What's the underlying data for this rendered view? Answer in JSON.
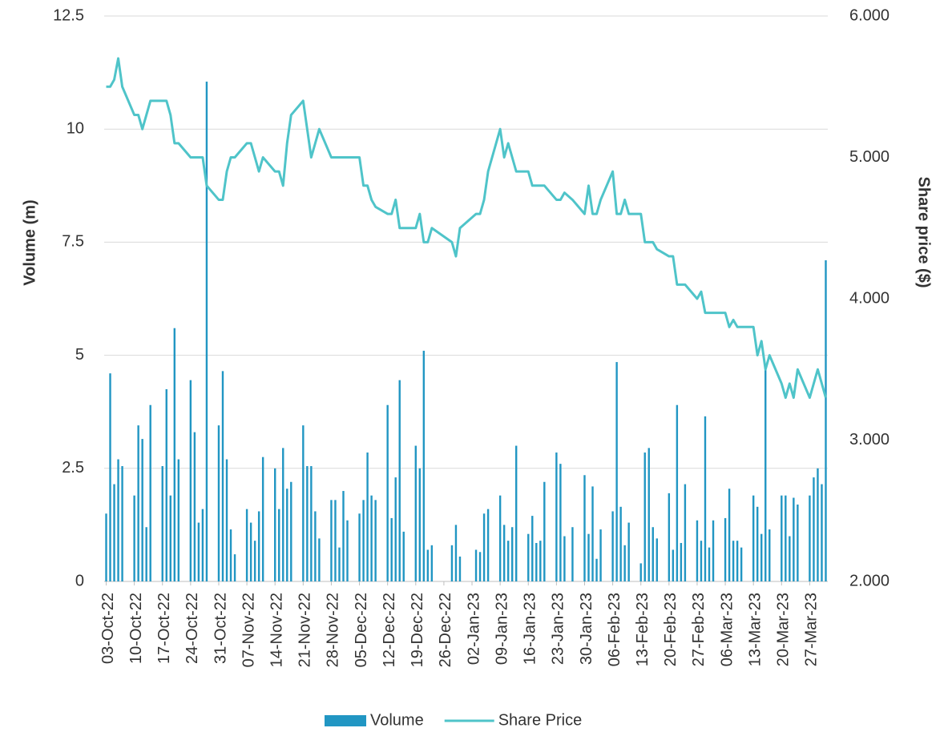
{
  "chart_data": {
    "type": "combo",
    "x": [
      "03-Oct-22",
      "04-Oct-22",
      "05-Oct-22",
      "06-Oct-22",
      "07-Oct-22",
      "10-Oct-22",
      "11-Oct-22",
      "12-Oct-22",
      "13-Oct-22",
      "14-Oct-22",
      "17-Oct-22",
      "18-Oct-22",
      "19-Oct-22",
      "20-Oct-22",
      "21-Oct-22",
      "24-Oct-22",
      "25-Oct-22",
      "26-Oct-22",
      "27-Oct-22",
      "28-Oct-22",
      "31-Oct-22",
      "01-Nov-22",
      "02-Nov-22",
      "03-Nov-22",
      "04-Nov-22",
      "07-Nov-22",
      "08-Nov-22",
      "09-Nov-22",
      "10-Nov-22",
      "11-Nov-22",
      "14-Nov-22",
      "15-Nov-22",
      "16-Nov-22",
      "17-Nov-22",
      "18-Nov-22",
      "21-Nov-22",
      "22-Nov-22",
      "23-Nov-22",
      "24-Nov-22",
      "25-Nov-22",
      "28-Nov-22",
      "29-Nov-22",
      "30-Nov-22",
      "01-Dec-22",
      "02-Dec-22",
      "05-Dec-22",
      "06-Dec-22",
      "07-Dec-22",
      "08-Dec-22",
      "09-Dec-22",
      "12-Dec-22",
      "13-Dec-22",
      "14-Dec-22",
      "15-Dec-22",
      "16-Dec-22",
      "19-Dec-22",
      "20-Dec-22",
      "21-Dec-22",
      "22-Dec-22",
      "23-Dec-22",
      "28-Dec-22",
      "29-Dec-22",
      "30-Dec-22",
      "03-Jan-23",
      "04-Jan-23",
      "05-Jan-23",
      "06-Jan-23",
      "09-Jan-23",
      "10-Jan-23",
      "11-Jan-23",
      "12-Jan-23",
      "13-Jan-23",
      "16-Jan-23",
      "17-Jan-23",
      "18-Jan-23",
      "19-Jan-23",
      "20-Jan-23",
      "23-Jan-23",
      "24-Jan-23",
      "25-Jan-23",
      "27-Jan-23",
      "30-Jan-23",
      "31-Jan-23",
      "01-Feb-23",
      "02-Feb-23",
      "03-Feb-23",
      "06-Feb-23",
      "07-Feb-23",
      "08-Feb-23",
      "09-Feb-23",
      "10-Feb-23",
      "13-Feb-23",
      "14-Feb-23",
      "15-Feb-23",
      "16-Feb-23",
      "17-Feb-23",
      "20-Feb-23",
      "21-Feb-23",
      "22-Feb-23",
      "23-Feb-23",
      "24-Feb-23",
      "27-Feb-23",
      "28-Feb-23",
      "01-Mar-23",
      "02-Mar-23",
      "03-Mar-23",
      "06-Mar-23",
      "07-Mar-23",
      "08-Mar-23",
      "09-Mar-23",
      "10-Mar-23",
      "13-Mar-23",
      "14-Mar-23",
      "15-Mar-23",
      "16-Mar-23",
      "17-Mar-23",
      "20-Mar-23",
      "21-Mar-23",
      "22-Mar-23",
      "23-Mar-23",
      "24-Mar-23",
      "27-Mar-23",
      "28-Mar-23",
      "29-Mar-23",
      "30-Mar-23",
      "31-Mar-23"
    ],
    "series": [
      {
        "name": "Volume",
        "type": "bar",
        "color": "#2196c3",
        "values": [
          1.5,
          4.6,
          2.15,
          2.7,
          2.55,
          1.9,
          3.45,
          3.15,
          1.2,
          3.9,
          2.55,
          4.25,
          1.9,
          5.6,
          2.7,
          4.45,
          3.3,
          1.3,
          1.6,
          11.05,
          3.45,
          4.65,
          2.7,
          1.15,
          0.6,
          1.6,
          1.3,
          0.9,
          1.55,
          2.75,
          2.5,
          1.6,
          2.95,
          2.05,
          2.2,
          3.45,
          2.55,
          2.55,
          1.55,
          0.95,
          1.8,
          1.8,
          0.75,
          2.0,
          1.35,
          1.5,
          1.8,
          2.85,
          1.9,
          1.8,
          3.9,
          1.4,
          2.3,
          4.45,
          1.1,
          3.0,
          2.5,
          5.1,
          0.7,
          0.8,
          0.8,
          1.25,
          0.55,
          0.7,
          0.65,
          1.5,
          1.6,
          1.9,
          1.25,
          0.9,
          1.2,
          3.0,
          1.05,
          1.45,
          0.85,
          0.9,
          2.2,
          2.85,
          2.6,
          1.0,
          1.2,
          2.35,
          1.05,
          2.1,
          0.5,
          1.15,
          1.55,
          4.85,
          1.65,
          0.8,
          1.3,
          0.4,
          2.85,
          2.95,
          1.2,
          0.95,
          1.95,
          0.7,
          3.9,
          0.85,
          2.15,
          1.35,
          0.9,
          3.65,
          0.75,
          1.35,
          1.4,
          2.05,
          0.9,
          0.9,
          0.75,
          1.9,
          1.65,
          1.05,
          4.8,
          1.15,
          1.9,
          1.9,
          1.0,
          1.85,
          1.7,
          1.9,
          2.3,
          2.5,
          2.15,
          7.1
        ]
      },
      {
        "name": "Share Price",
        "type": "line",
        "axis": "y2",
        "color": "#4fc4c9",
        "values": [
          5.5,
          5.5,
          5.55,
          5.7,
          5.5,
          5.3,
          5.3,
          5.2,
          5.3,
          5.4,
          5.4,
          5.4,
          5.3,
          5.1,
          5.1,
          5.0,
          5.0,
          5.0,
          5.0,
          4.8,
          4.7,
          4.7,
          4.9,
          5.0,
          5.0,
          5.1,
          5.1,
          5.0,
          4.9,
          5.0,
          4.9,
          4.9,
          4.8,
          5.1,
          5.3,
          5.4,
          5.2,
          5.0,
          5.1,
          5.2,
          5.0,
          5.0,
          5.0,
          5.0,
          5.0,
          5.0,
          4.8,
          4.8,
          4.7,
          4.65,
          4.6,
          4.6,
          4.7,
          4.5,
          4.5,
          4.5,
          4.6,
          4.4,
          4.4,
          4.5,
          4.4,
          4.3,
          4.5,
          4.6,
          4.6,
          4.7,
          4.9,
          5.2,
          5.0,
          5.1,
          5.0,
          4.9,
          4.9,
          4.8,
          4.8,
          4.8,
          4.8,
          4.7,
          4.7,
          4.75,
          4.7,
          4.6,
          4.8,
          4.6,
          4.6,
          4.7,
          4.9,
          4.6,
          4.6,
          4.7,
          4.6,
          4.6,
          4.4,
          4.4,
          4.4,
          4.35,
          4.3,
          4.3,
          4.1,
          4.1,
          4.1,
          4.0,
          4.05,
          3.9,
          3.9,
          3.9,
          3.9,
          3.8,
          3.85,
          3.8,
          3.8,
          3.8,
          3.6,
          3.7,
          3.5,
          3.6,
          3.4,
          3.3,
          3.4,
          3.3,
          3.5,
          3.3,
          3.4,
          3.5,
          3.4,
          3.3
        ]
      }
    ],
    "xlim": [
      "03-Oct-22",
      "31-Mar-23"
    ],
    "xticks": [
      "03-Oct-22",
      "10-Oct-22",
      "17-Oct-22",
      "24-Oct-22",
      "31-Oct-22",
      "07-Nov-22",
      "14-Nov-22",
      "21-Nov-22",
      "28-Nov-22",
      "05-Dec-22",
      "12-Dec-22",
      "19-Dec-22",
      "26-Dec-22",
      "02-Jan-23",
      "09-Jan-23",
      "16-Jan-23",
      "23-Jan-23",
      "30-Jan-23",
      "06-Feb-23",
      "13-Feb-23",
      "20-Feb-23",
      "27-Feb-23",
      "06-Mar-23",
      "13-Mar-23",
      "20-Mar-23",
      "27-Mar-23"
    ],
    "ylabel": "Volume (m)",
    "ylim": [
      0,
      12.5
    ],
    "yticks": [
      0,
      2.5,
      5,
      7.5,
      10,
      12.5
    ],
    "y2label": "Share price ($)",
    "y2lim": [
      2,
      6
    ],
    "y2ticks": [
      {
        "value": 2,
        "label": "2.000"
      },
      {
        "value": 3,
        "label": "3.000"
      },
      {
        "value": 4,
        "label": "4.000"
      },
      {
        "value": 5,
        "label": "5.000"
      },
      {
        "value": 6,
        "label": "6.000"
      }
    ],
    "grid": true,
    "legend": "bottom"
  }
}
